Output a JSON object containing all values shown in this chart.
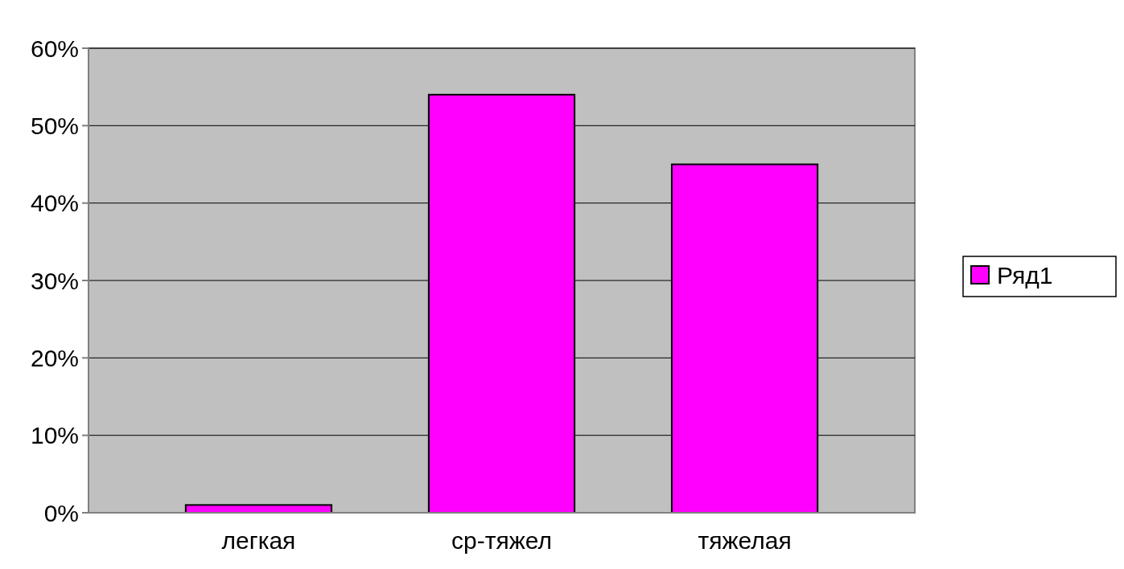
{
  "chart_data": {
    "type": "bar",
    "categories": [
      "легкая",
      "ср-тяжел",
      "тяжелая"
    ],
    "series": [
      {
        "name": "Ряд1",
        "color": "#ff00ff",
        "values": [
          1,
          54,
          45
        ]
      }
    ],
    "ylim": [
      0,
      60
    ],
    "yticks": [
      {
        "value": 0,
        "label": "0%"
      },
      {
        "value": 10,
        "label": "10%"
      },
      {
        "value": 20,
        "label": "20%"
      },
      {
        "value": 30,
        "label": "30%"
      },
      {
        "value": 40,
        "label": "40%"
      },
      {
        "value": 50,
        "label": "50%"
      },
      {
        "value": 60,
        "label": "60%"
      }
    ],
    "grid": "y",
    "legend": "right"
  }
}
